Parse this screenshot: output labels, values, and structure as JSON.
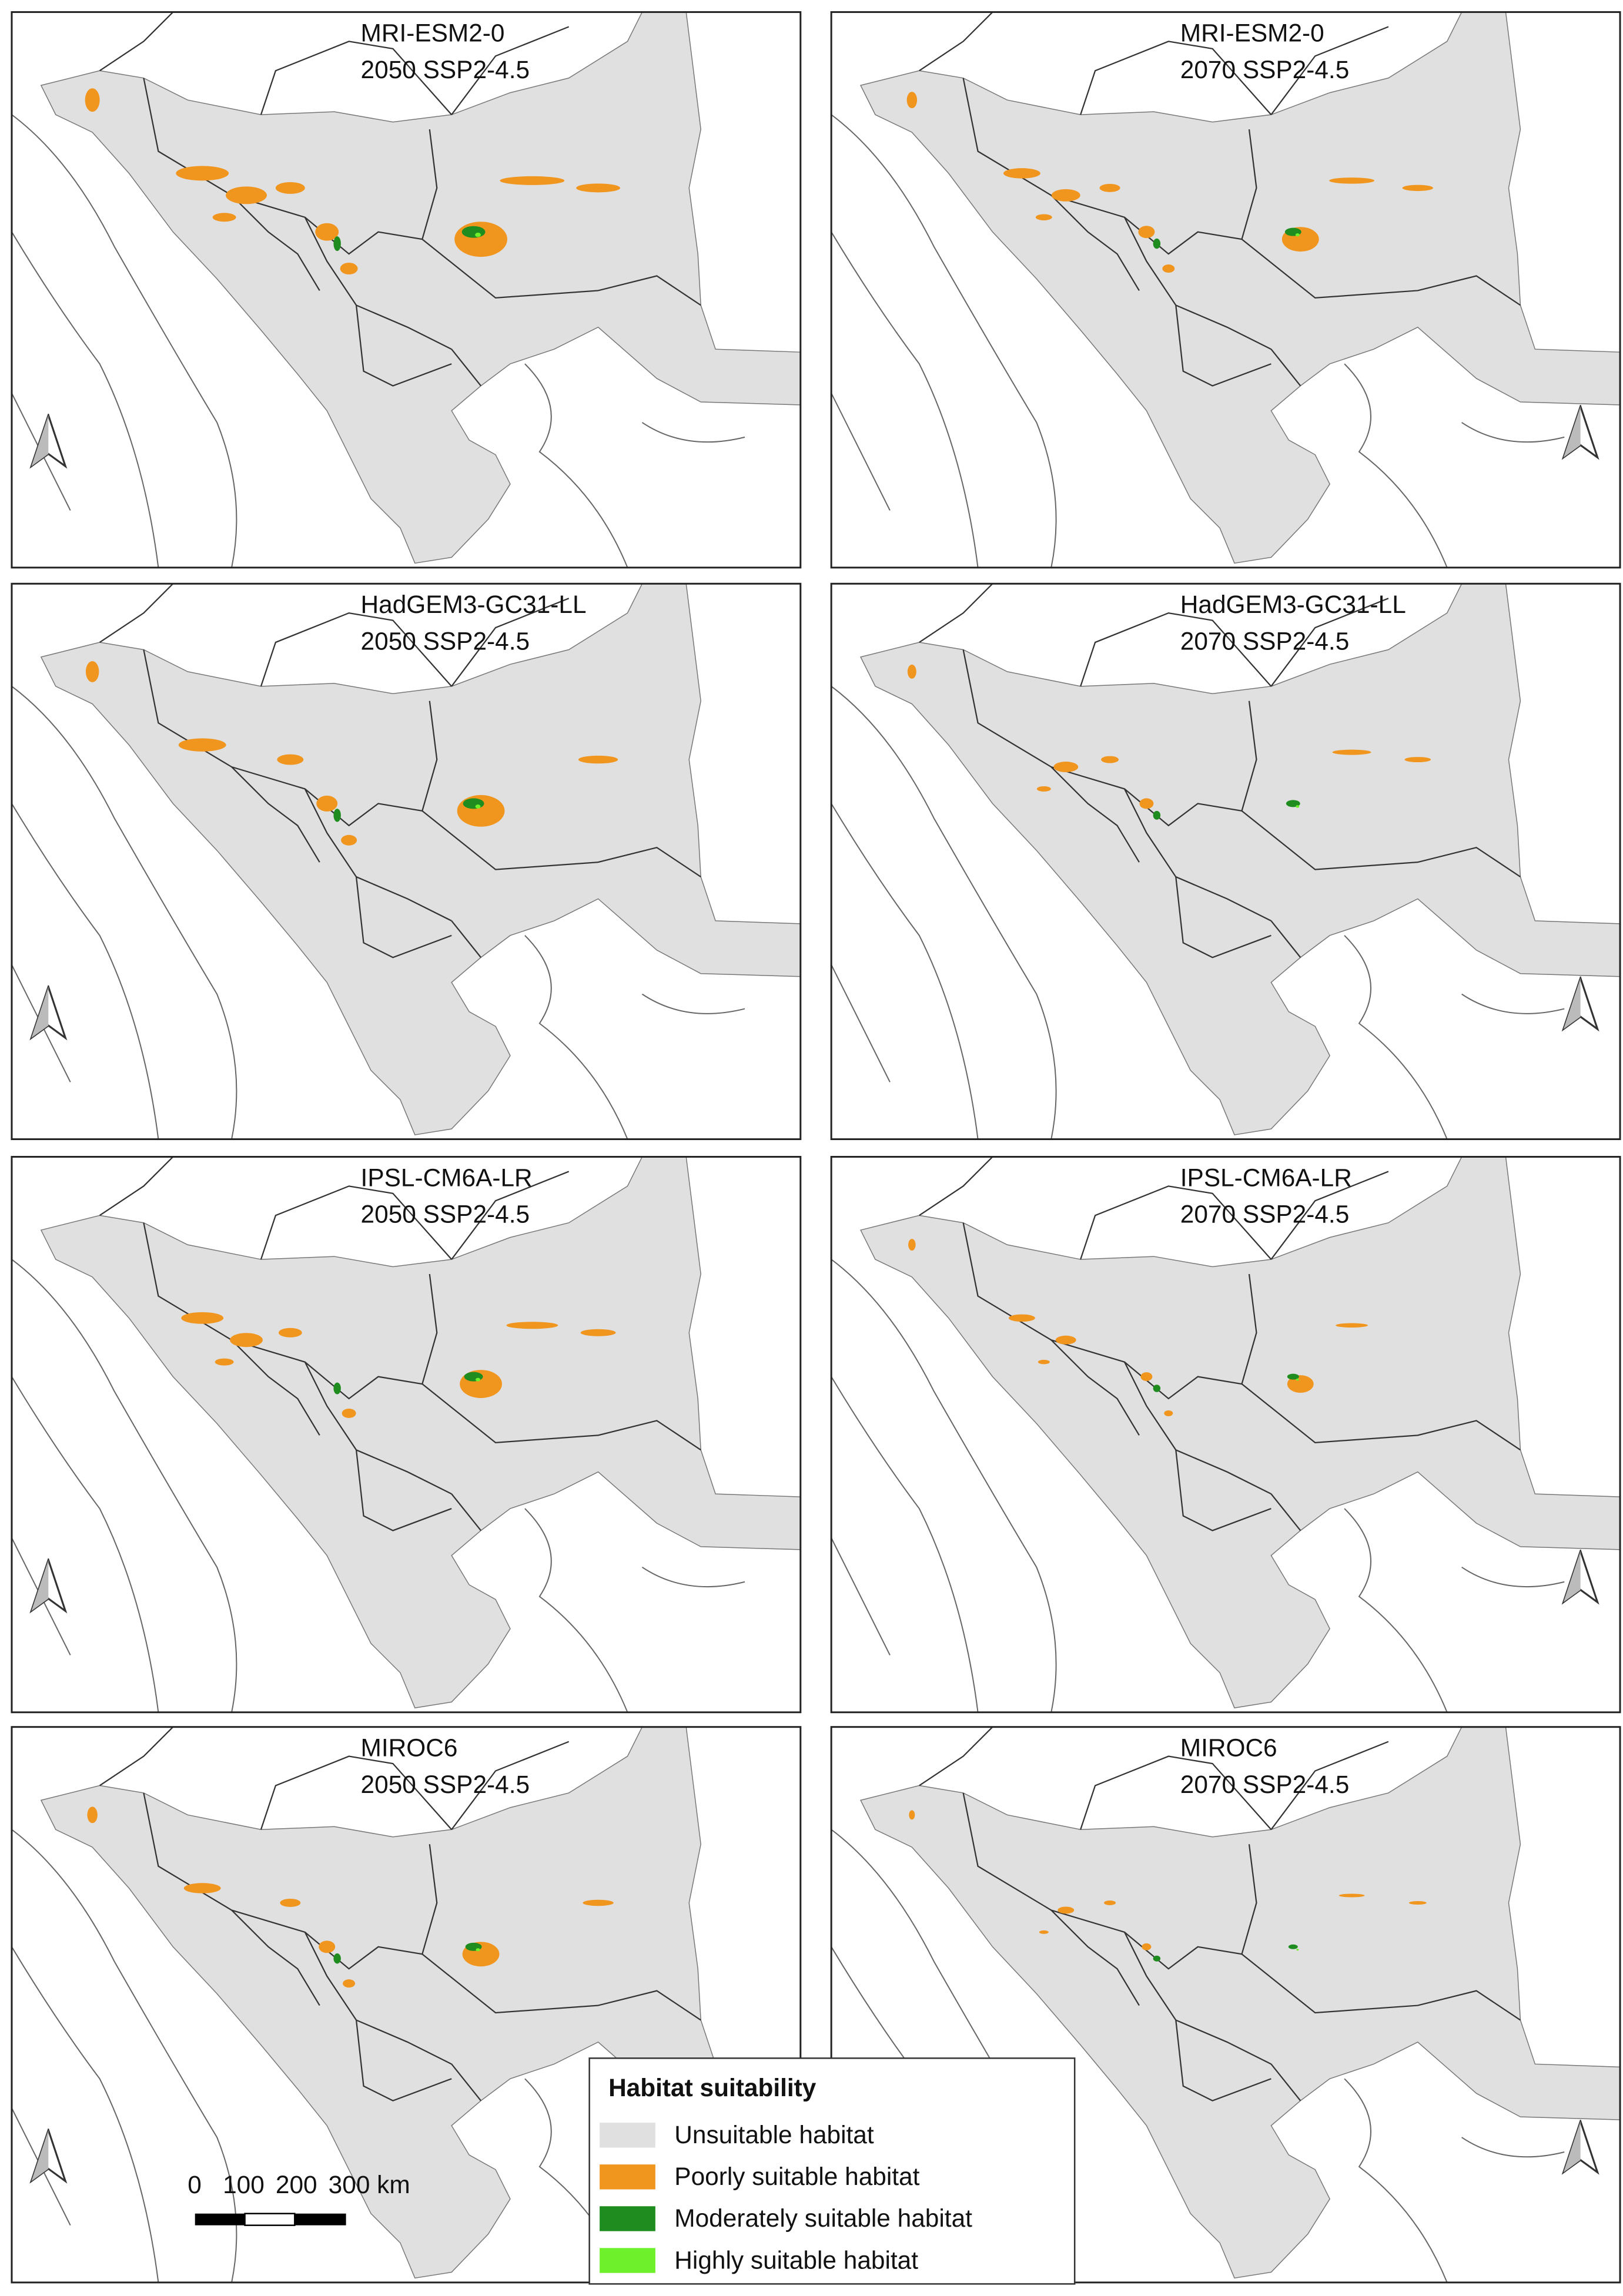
{
  "panels": [
    {
      "model": "MRI-ESM2-0",
      "scenario": "2050 SSP2-4.5"
    },
    {
      "model": "MRI-ESM2-0",
      "scenario": "2070 SSP2-4.5"
    },
    {
      "model": "HadGEM3-GC31-LL",
      "scenario": "2050 SSP2-4.5"
    },
    {
      "model": "HadGEM3-GC31-LL",
      "scenario": "2070 SSP2-4.5"
    },
    {
      "model": "IPSL-CM6A-LR",
      "scenario": "2050 SSP2-4.5"
    },
    {
      "model": "IPSL-CM6A-LR",
      "scenario": "2070 SSP2-4.5"
    },
    {
      "model": "MIROC6",
      "scenario": "2050 SSP2-4.5"
    },
    {
      "model": "MIROC6",
      "scenario": "2070 SSP2-4.5"
    }
  ],
  "legend": {
    "title": "Habitat suitability",
    "items": [
      {
        "label": "Unsuitable habitat",
        "color": "#e0e0e0"
      },
      {
        "label": "Poorly suitable habitat",
        "color": "#f0951e"
      },
      {
        "label": "Moderately suitable habitat",
        "color": "#1e8c1e"
      },
      {
        "label": "Highly suitable habitat",
        "color": "#6ef02a"
      }
    ]
  },
  "scale_bar": {
    "labels": [
      "0",
      "100",
      "200",
      "300 km"
    ]
  }
}
